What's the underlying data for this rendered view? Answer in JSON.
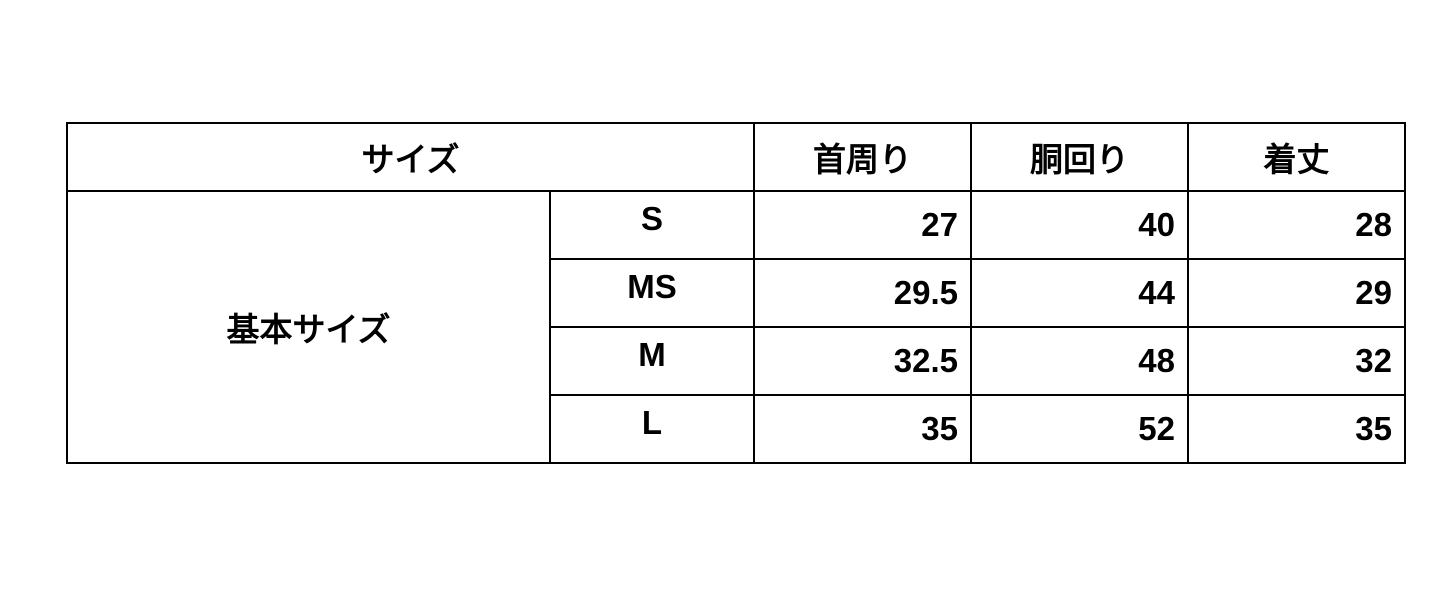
{
  "header": {
    "size": "サイズ",
    "columns": [
      "首周り",
      "胴回り",
      "着丈"
    ]
  },
  "group_label": "基本サイズ",
  "rows": [
    {
      "size": "S",
      "values": [
        "27",
        "40",
        "28"
      ]
    },
    {
      "size": "MS",
      "values": [
        "29.5",
        "44",
        "29"
      ]
    },
    {
      "size": "M",
      "values": [
        "32.5",
        "48",
        "32"
      ]
    },
    {
      "size": "L",
      "values": [
        "35",
        "52",
        "35"
      ]
    }
  ]
}
